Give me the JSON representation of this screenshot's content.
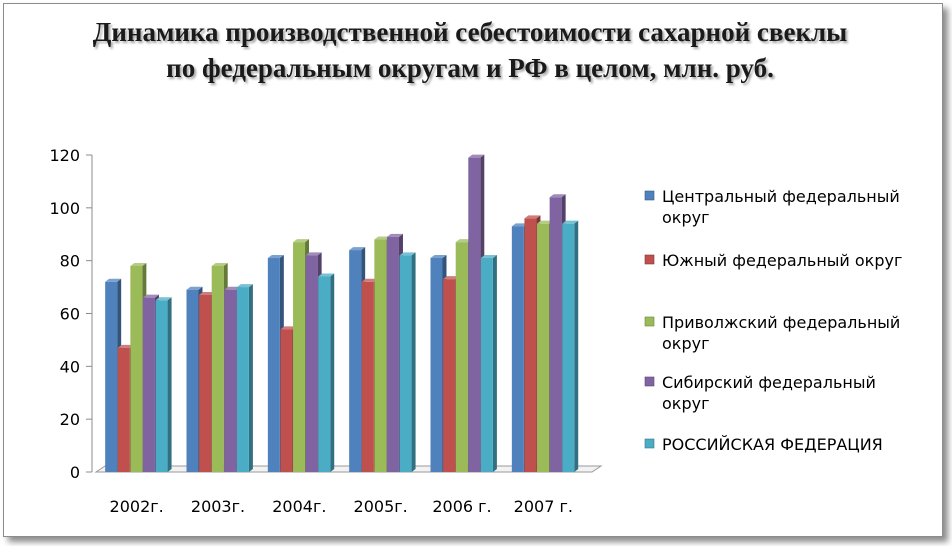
{
  "chart_data": {
    "type": "bar",
    "title": "Динамика производственной себестоимости сахарной свеклы по федеральным округам и РФ в целом, млн. руб.",
    "categories": [
      "2002г.",
      "2003г.",
      "2004г.",
      "2005г.",
      "2006 г.",
      "2007 г."
    ],
    "yticks": [
      "0",
      "20",
      "40",
      "60",
      "80",
      "100",
      "120"
    ],
    "ylim": [
      0,
      120
    ],
    "grid": false,
    "legend_position": "right",
    "series": [
      {
        "name": "Центральный федеральный округ",
        "color": "#4f81bd",
        "values": [
          72,
          69,
          81,
          84,
          81,
          93
        ]
      },
      {
        "name": "Южный федеральный округ",
        "color": "#c0504d",
        "values": [
          47,
          67,
          54,
          72,
          73,
          96
        ]
      },
      {
        "name": "Приволжский федеральный округ",
        "color": "#9bbb59",
        "values": [
          78,
          78,
          87,
          88,
          87,
          94
        ]
      },
      {
        "name": "Сибирский федеральный округ",
        "color": "#8064a2",
        "values": [
          66,
          69,
          82,
          89,
          119,
          104
        ]
      },
      {
        "name": "РОССИЙСКАЯ  ФЕДЕРАЦИЯ",
        "color": "#4bacc6",
        "values": [
          65,
          70,
          74,
          82,
          81,
          94
        ]
      }
    ]
  }
}
